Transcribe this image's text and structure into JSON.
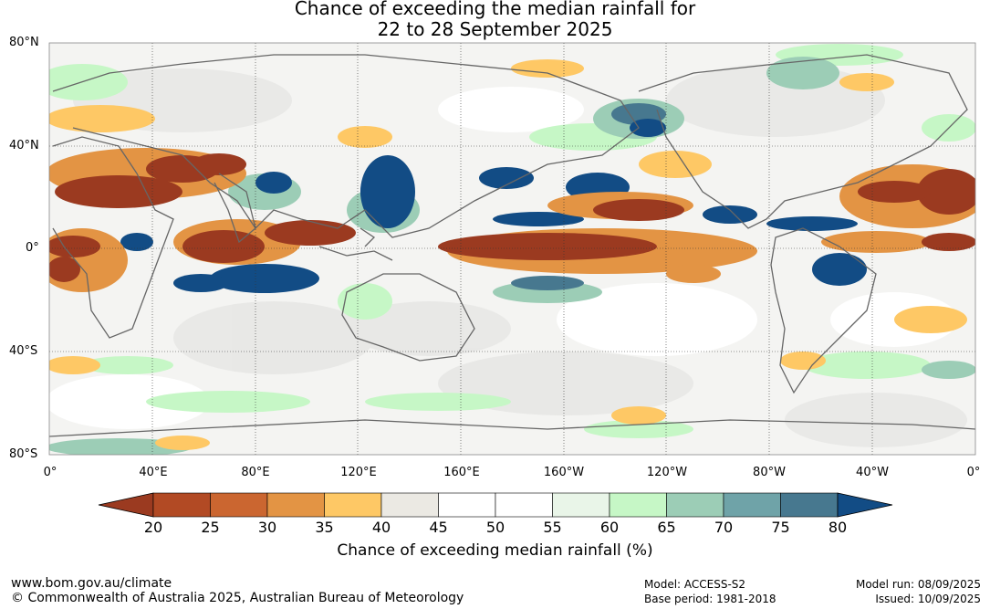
{
  "title": {
    "line1": "Chance of exceeding the median rainfall for",
    "line2": "22 to 28 September 2025"
  },
  "map": {
    "lat_labels": [
      "80°N",
      "40°N",
      "0°",
      "40°S",
      "80°S"
    ],
    "lon_labels": [
      "0°",
      "40°E",
      "80°E",
      "120°E",
      "160°E",
      "160°W",
      "120°W",
      "80°W",
      "40°W",
      "0°"
    ],
    "projection": "equirectangular",
    "extent": {
      "lon": [
        0,
        360
      ],
      "lat": [
        -80,
        80
      ]
    }
  },
  "colorbar": {
    "ticks": [
      "20",
      "25",
      "30",
      "35",
      "40",
      "45",
      "50",
      "55",
      "60",
      "65",
      "70",
      "75",
      "80"
    ],
    "colors": [
      "#9b3a20",
      "#b24a24",
      "#cb6630",
      "#e39444",
      "#fec865",
      "#ebe9e3",
      "#ffffff",
      "#ffffff",
      "#e9f5e8",
      "#c6f7c6",
      "#9ccdb6",
      "#6fa3a8",
      "#47788f",
      "#124c85"
    ],
    "label": "Chance of exceeding median rainfall (%)"
  },
  "footer": {
    "website": "www.bom.gov.au/climate",
    "copyright": "© Commonwealth of Australia 2025, Australian Bureau of Meteorology",
    "model": "Model: ACCESS-S2",
    "base_period": "Base period: 1981-2018",
    "model_run": "Model run: 08/09/2025",
    "issued": "Issued: 10/09/2025"
  }
}
